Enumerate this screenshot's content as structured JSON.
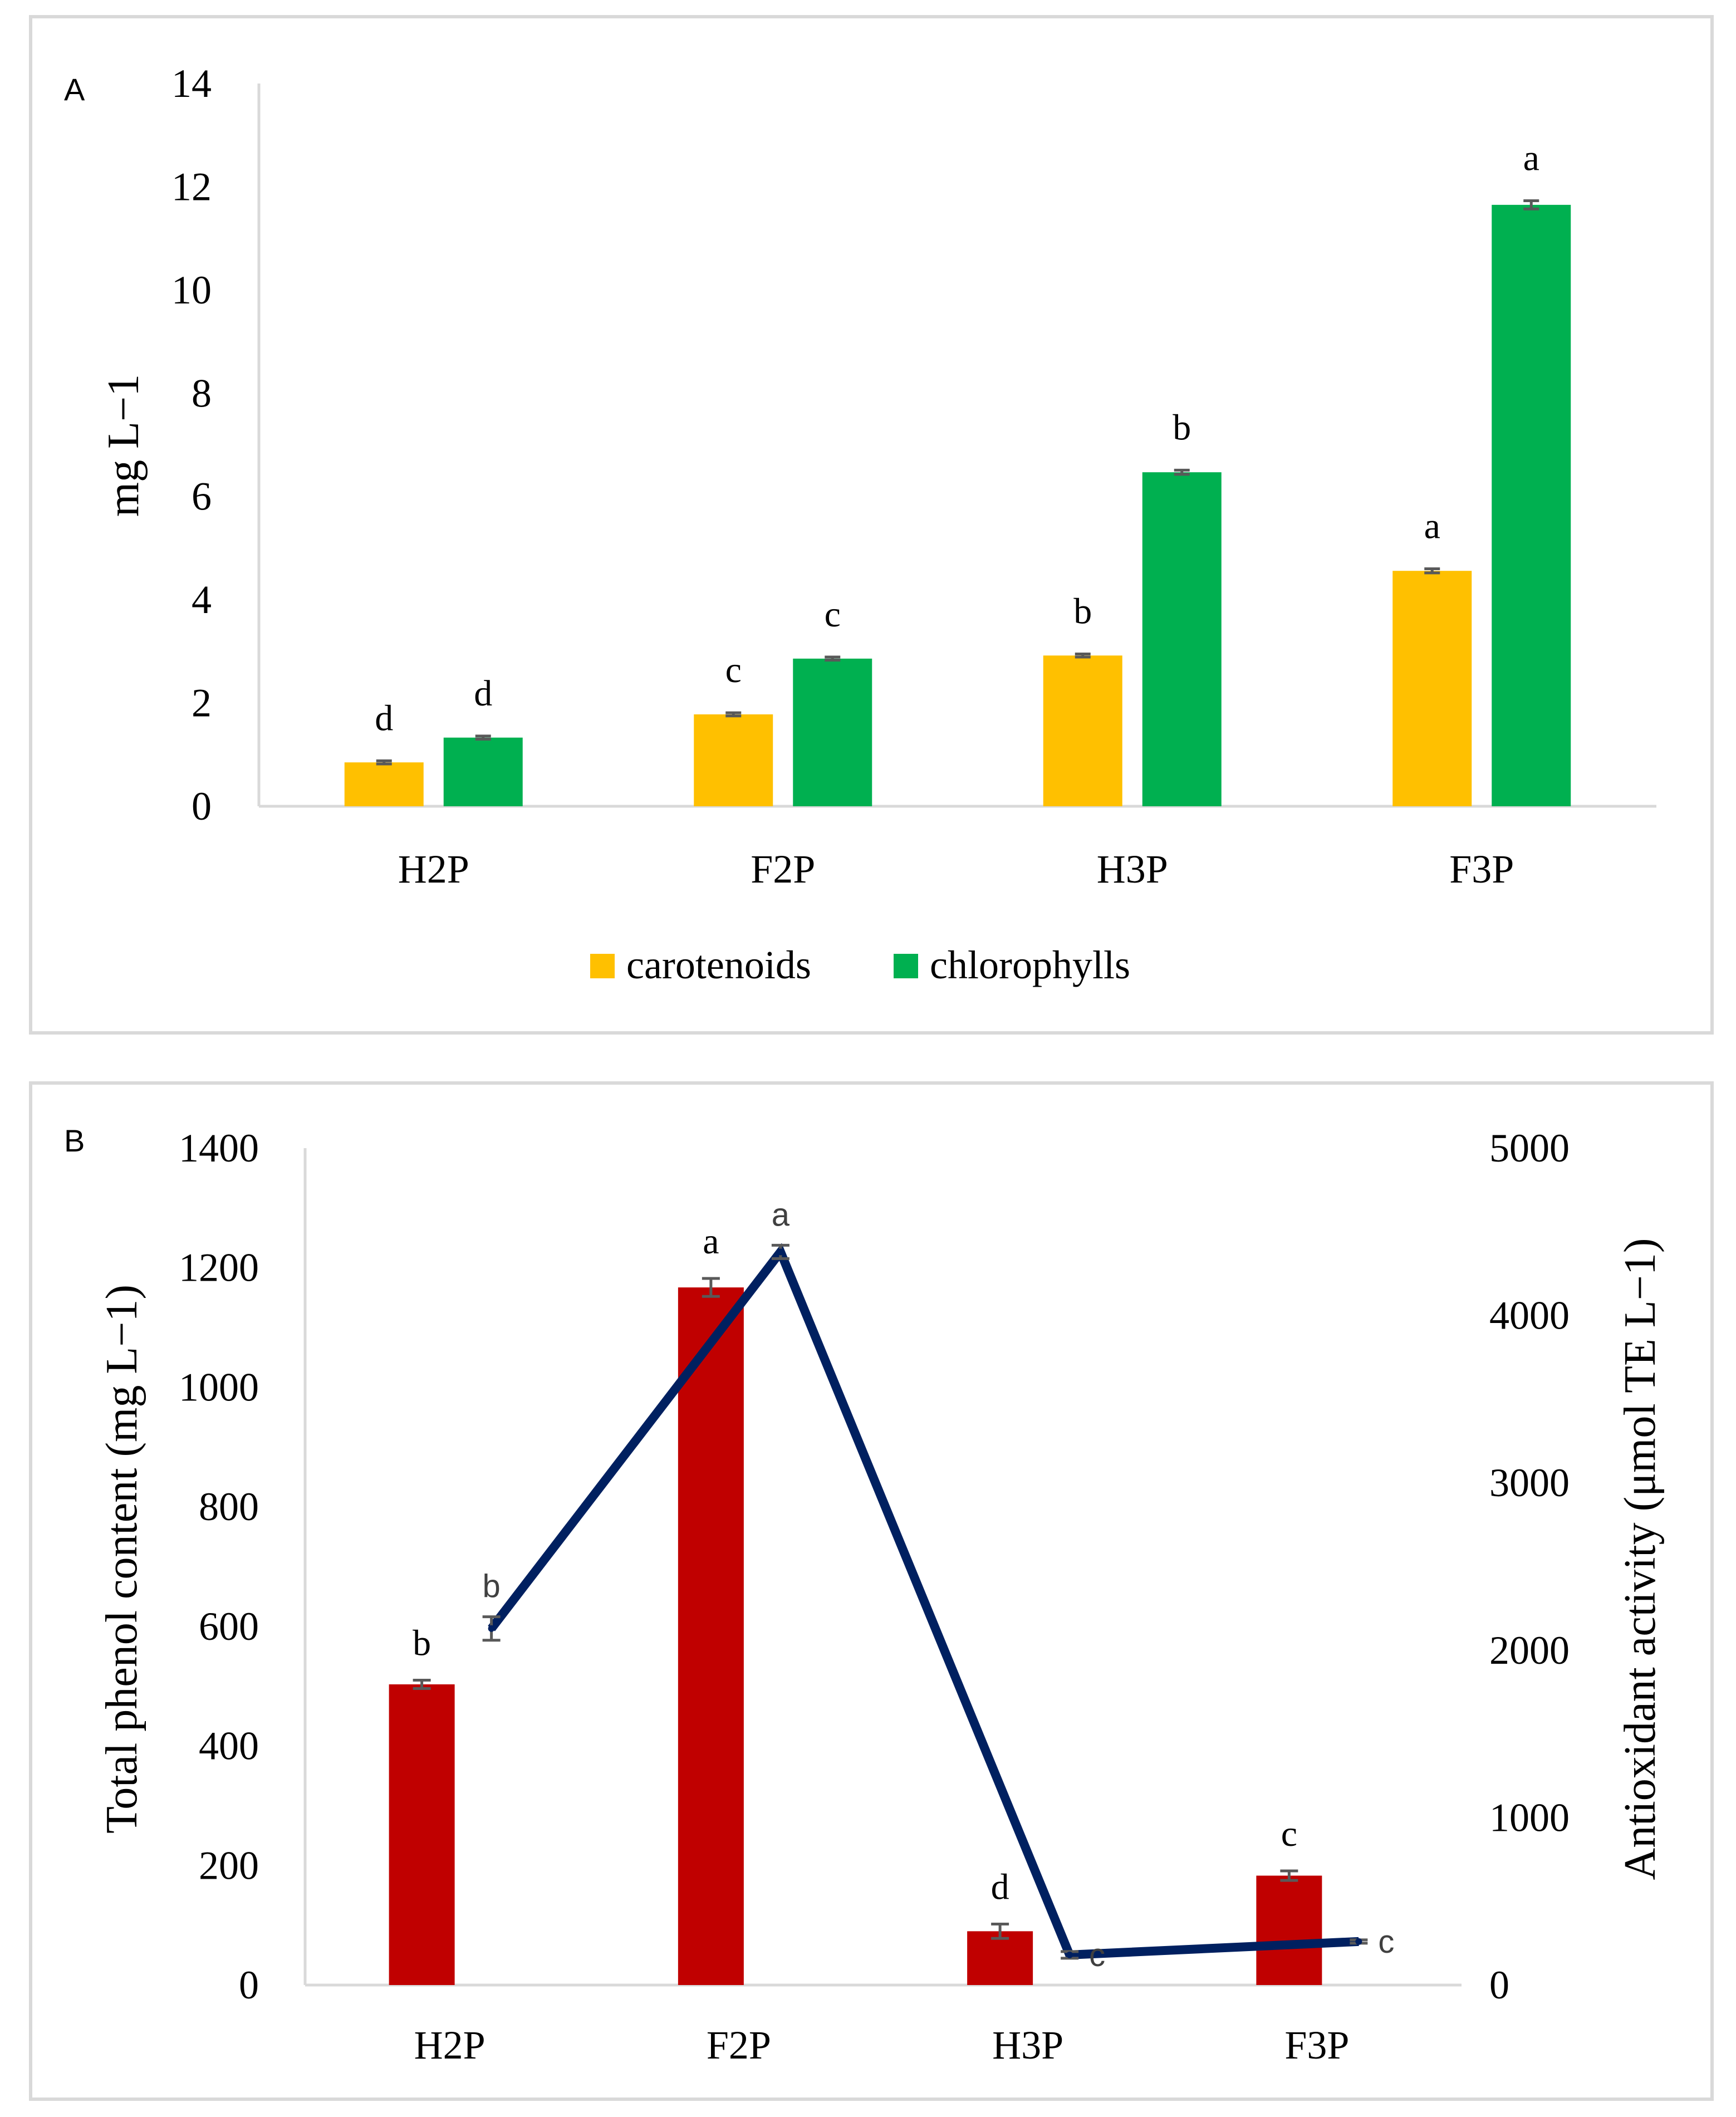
{
  "chart_data": [
    {
      "panel": "A",
      "type": "bar",
      "categories": [
        "H2P",
        "F2P",
        "H3P",
        "F3P"
      ],
      "ylabel": "mg L−1",
      "ylim": [
        0,
        14
      ],
      "yticks": [
        0,
        2,
        4,
        6,
        8,
        10,
        12,
        14
      ],
      "series": [
        {
          "name": "carotenoids",
          "color": "#FFC000",
          "values": [
            0.85,
            1.78,
            2.92,
            4.56
          ],
          "errors": [
            0.03,
            0.03,
            0.03,
            0.04
          ],
          "letters": [
            "d",
            "c",
            "b",
            "a"
          ]
        },
        {
          "name": "chlorophylls",
          "color": "#00B050",
          "values": [
            1.33,
            2.86,
            6.47,
            11.65
          ],
          "errors": [
            0.03,
            0.03,
            0.04,
            0.08
          ],
          "letters": [
            "d",
            "c",
            "b",
            "a"
          ]
        }
      ],
      "legend": "bottom-center",
      "grid": false
    },
    {
      "panel": "B",
      "type": "bar+line",
      "categories": [
        "H2P",
        "F2P",
        "H3P",
        "F3P"
      ],
      "ylabel": "Total phenol content (mg L−1)",
      "ylabel2": "Antioxidant activity (μmol TE L−1)",
      "ylim": [
        0,
        1400
      ],
      "y2lim": [
        0,
        5000
      ],
      "yticks": [
        0,
        200,
        400,
        600,
        800,
        1000,
        1200,
        1400
      ],
      "y2ticks": [
        0,
        1000,
        2000,
        3000,
        4000,
        5000
      ],
      "bars": {
        "name": "Total phenol content",
        "color": "#C00000",
        "values": [
          503,
          1167,
          90,
          183
        ],
        "errors": [
          7,
          15,
          12,
          8
        ],
        "letters": [
          "b",
          "a",
          "d",
          "c"
        ]
      },
      "line": {
        "name": "Antioxidant activity",
        "color": "#002060",
        "values": [
          2130,
          4380,
          180,
          260
        ],
        "errors": [
          70,
          40,
          20,
          10
        ],
        "letters": [
          "b",
          "a",
          "c",
          "c"
        ]
      },
      "grid": false
    }
  ]
}
